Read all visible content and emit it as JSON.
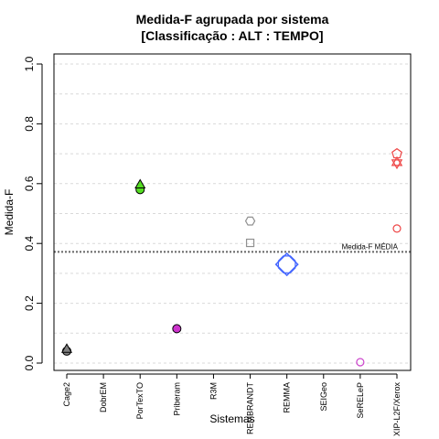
{
  "chart_data": {
    "type": "scatter",
    "title_line1": "Medida-F agrupada por sistema",
    "title_line2": "[Classificação : ALT : TEMPO]",
    "xlabel": "Sistemas",
    "ylabel": "Medida-F",
    "ylim": [
      0,
      1
    ],
    "yticks": [
      "0.0",
      "0.2",
      "0.4",
      "0.6",
      "0.8",
      "1.0"
    ],
    "grid": true,
    "categories": [
      "Cage2",
      "DobrEM",
      "PorTexTO",
      "Priberam",
      "R3M",
      "REMBRANDT",
      "REMMA",
      "SEIGeo",
      "SeRELeP",
      "XIP-L2F/Xerox"
    ],
    "reference_line": {
      "value": 0.372,
      "label": "Medida-F MÉDIA"
    },
    "points": [
      {
        "category": "Cage2",
        "y": 0.04,
        "shape": "circle",
        "color": "#808080"
      },
      {
        "category": "Cage2",
        "y": 0.045,
        "shape": "triangle",
        "color": "#808080"
      },
      {
        "category": "PorTexTO",
        "y": 0.58,
        "shape": "circle",
        "color": "#55dd22"
      },
      {
        "category": "PorTexTO",
        "y": 0.595,
        "shape": "triangle",
        "color": "#55dd22"
      },
      {
        "category": "Priberam",
        "y": 0.115,
        "shape": "circle",
        "color": "#cc33cc"
      },
      {
        "category": "REMBRANDT",
        "y": 0.475,
        "shape": "hexagon",
        "color": "#909090"
      },
      {
        "category": "REMBRANDT",
        "y": 0.402,
        "shape": "square",
        "color": "#909090"
      },
      {
        "category": "REMMA",
        "y": 0.33,
        "shape": "diamond-large",
        "color": "#4466ff"
      },
      {
        "category": "SeRELeP",
        "y": 0.003,
        "shape": "circle-open",
        "color": "#cc44cc"
      },
      {
        "category": "XIP-L2F/Xerox",
        "y": 0.7,
        "shape": "pentagon",
        "color": "#ee4444"
      },
      {
        "category": "XIP-L2F/Xerox",
        "y": 0.67,
        "shape": "star",
        "color": "#ee4444"
      },
      {
        "category": "XIP-L2F/Xerox",
        "y": 0.45,
        "shape": "circle-open",
        "color": "#ee4444"
      }
    ]
  }
}
